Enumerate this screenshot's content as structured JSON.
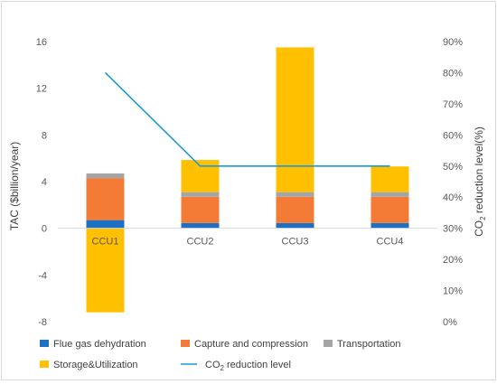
{
  "chart_data": {
    "type": "bar",
    "stacked": true,
    "categories": [
      "CCU1",
      "CCU2",
      "CCU3",
      "CCU4"
    ],
    "ylabel": "TAC ($billion/year)",
    "ylim": [
      -8,
      16
    ],
    "yticks": [
      -8,
      -4,
      0,
      4,
      8,
      12,
      16
    ],
    "y2label": "CO2 reduction level(%)",
    "y2_prefix": "CO",
    "y2_sub": "2",
    "y2_suffix": " reduction level(%)",
    "y2lim": [
      0,
      90
    ],
    "y2ticks": [
      "0%",
      "10%",
      "20%",
      "30%",
      "40%",
      "50%",
      "60%",
      "70%",
      "80%",
      "90%"
    ],
    "series": [
      {
        "name": "Flue gas dehydration",
        "color": "#1f6fc5",
        "values": [
          0.7,
          0.45,
          0.45,
          0.45
        ]
      },
      {
        "name": "Capture and compression",
        "color": "#f47b35",
        "values": [
          3.6,
          2.25,
          2.25,
          2.25
        ]
      },
      {
        "name": "Transportation",
        "color": "#a5a5a5",
        "values": [
          0.4,
          0.4,
          0.4,
          0.4
        ]
      },
      {
        "name": "Storage&Utilization",
        "color": "#ffc000",
        "values": [
          -7.2,
          2.75,
          12.4,
          2.2
        ]
      }
    ],
    "line": {
      "name": "CO2 reduction level",
      "prefix": "CO",
      "sub": "2",
      "suffix": " reduction level",
      "color": "#1a9bd7",
      "values": [
        80,
        50,
        50,
        50
      ]
    },
    "grid": false,
    "legend": "bottom"
  }
}
